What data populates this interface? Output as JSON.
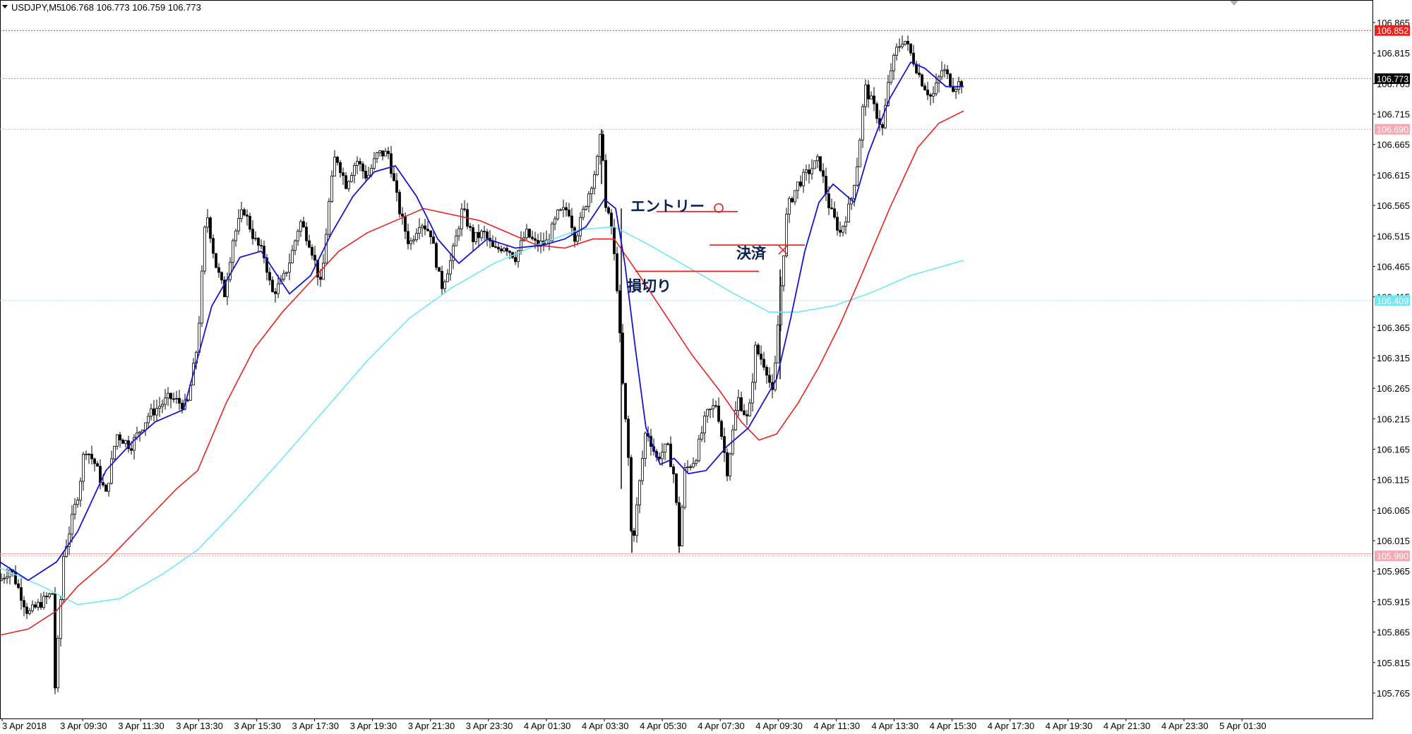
{
  "header": {
    "menu_icon": "triangle-down-icon",
    "symbol": "USDJPY,M5",
    "ohlc": "106.768 106.773 106.759 106.773"
  },
  "colors": {
    "ma_fast": "#1515d0",
    "ma_mid": "#e8231d",
    "ma_slow": "#6ee8f2",
    "candle": "#000000",
    "annotation_line": "#e8231d",
    "annotation_text": "#0a2050",
    "resistance_line": "#e8231d",
    "support_line": "#e8231d",
    "current_price_box": "#000000"
  },
  "annotations": {
    "entry_label": "エントリー",
    "exit_label": "決済",
    "stoploss_label": "損切り",
    "entry_marker_icon": "circle-icon",
    "exit_marker_icon": "cross-icon"
  },
  "chart_data": {
    "type": "candlestick",
    "symbol": "USDJPY",
    "timeframe": "M5",
    "y_ticks": [
      "106.865",
      "106.815",
      "106.765",
      "106.715",
      "106.665",
      "106.615",
      "106.565",
      "106.515",
      "106.465",
      "106.415",
      "106.365",
      "106.315",
      "106.265",
      "106.215",
      "106.165",
      "106.115",
      "106.065",
      "106.015",
      "105.965",
      "105.915",
      "105.865",
      "105.815",
      "105.765"
    ],
    "ylim": [
      105.745,
      106.89
    ],
    "x_ticks": [
      "3 Apr 2018",
      "3 Apr 09:30",
      "3 Apr 11:30",
      "3 Apr 13:30",
      "3 Apr 15:30",
      "3 Apr 17:30",
      "3 Apr 19:30",
      "3 Apr 21:30",
      "3 Apr 23:30",
      "4 Apr 01:30",
      "4 Apr 03:30",
      "4 Apr 05:30",
      "4 Apr 07:30",
      "4 Apr 09:30",
      "4 Apr 11:30",
      "4 Apr 13:30",
      "4 Apr 15:30",
      "4 Apr 17:30",
      "4 Apr 19:30",
      "4 Apr 21:30",
      "4 Apr 23:30",
      "5 Apr 01:30"
    ],
    "current_price": "106.773",
    "horizontal_levels": [
      {
        "label": "106.852",
        "value": 106.852,
        "color": "#e8231d",
        "label_bg": "#e8231d"
      },
      {
        "label": "106.690",
        "value": 106.69,
        "color": "#f4a0a0",
        "label_bg": "#f4a8b4"
      },
      {
        "label": "106.409",
        "value": 106.409,
        "color": "#6ee8f2",
        "label_bg": "#6ee8f2"
      },
      {
        "label": "105.990",
        "value": 105.99,
        "color": "#f4a0a0",
        "label_bg": "#f4a8b4"
      }
    ],
    "trade": {
      "entry": 106.555,
      "exit": 106.5,
      "stop_loss": 106.457
    },
    "price_path": [
      [
        0,
        105.95
      ],
      [
        15,
        105.97
      ],
      [
        40,
        105.895
      ],
      [
        75,
        105.93
      ],
      [
        78,
        105.775
      ],
      [
        90,
        105.99
      ],
      [
        100,
        106.04
      ],
      [
        112,
        106.1
      ],
      [
        120,
        106.17
      ],
      [
        135,
        106.14
      ],
      [
        150,
        106.09
      ],
      [
        165,
        106.19
      ],
      [
        185,
        106.17
      ],
      [
        210,
        106.22
      ],
      [
        240,
        106.25
      ],
      [
        265,
        106.235
      ],
      [
        280,
        106.34
      ],
      [
        292,
        106.56
      ],
      [
        305,
        106.47
      ],
      [
        318,
        106.42
      ],
      [
        330,
        106.51
      ],
      [
        345,
        106.56
      ],
      [
        360,
        106.51
      ],
      [
        375,
        106.48
      ],
      [
        385,
        106.42
      ],
      [
        400,
        106.44
      ],
      [
        412,
        106.48
      ],
      [
        425,
        106.54
      ],
      [
        440,
        106.5
      ],
      [
        455,
        106.43
      ],
      [
        465,
        106.56
      ],
      [
        475,
        106.65
      ],
      [
        490,
        106.6
      ],
      [
        505,
        106.64
      ],
      [
        520,
        106.61
      ],
      [
        535,
        106.65
      ],
      [
        550,
        106.65
      ],
      [
        565,
        106.56
      ],
      [
        580,
        106.5
      ],
      [
        595,
        106.54
      ],
      [
        610,
        106.52
      ],
      [
        625,
        106.43
      ],
      [
        640,
        106.48
      ],
      [
        655,
        106.56
      ],
      [
        670,
        106.51
      ],
      [
        685,
        106.52
      ],
      [
        700,
        106.49
      ],
      [
        715,
        106.5
      ],
      [
        730,
        106.48
      ],
      [
        745,
        106.52
      ],
      [
        760,
        106.5
      ],
      [
        775,
        106.505
      ],
      [
        790,
        106.55
      ],
      [
        805,
        106.56
      ],
      [
        815,
        106.51
      ],
      [
        830,
        106.57
      ],
      [
        845,
        106.63
      ],
      [
        852,
        106.69
      ],
      [
        858,
        106.56
      ],
      [
        866,
        106.53
      ],
      [
        875,
        106.42
      ],
      [
        880,
        106.3
      ],
      [
        890,
        106.15
      ],
      [
        895,
        106.0
      ],
      [
        905,
        106.1
      ],
      [
        915,
        106.2
      ],
      [
        930,
        106.15
      ],
      [
        945,
        106.17
      ],
      [
        955,
        106.12
      ],
      [
        962,
        106.01
      ],
      [
        970,
        106.13
      ],
      [
        985,
        106.15
      ],
      [
        1000,
        106.22
      ],
      [
        1015,
        106.24
      ],
      [
        1030,
        106.13
      ],
      [
        1045,
        106.25
      ],
      [
        1060,
        106.21
      ],
      [
        1070,
        106.33
      ],
      [
        1085,
        106.3
      ],
      [
        1095,
        106.25
      ],
      [
        1105,
        106.42
      ],
      [
        1115,
        106.56
      ],
      [
        1130,
        106.6
      ],
      [
        1145,
        106.62
      ],
      [
        1160,
        106.64
      ],
      [
        1175,
        106.56
      ],
      [
        1190,
        106.52
      ],
      [
        1205,
        106.57
      ],
      [
        1215,
        106.64
      ],
      [
        1225,
        106.76
      ],
      [
        1240,
        106.72
      ],
      [
        1250,
        106.69
      ],
      [
        1260,
        106.78
      ],
      [
        1270,
        106.82
      ],
      [
        1280,
        106.84
      ],
      [
        1295,
        106.8
      ],
      [
        1305,
        106.77
      ],
      [
        1320,
        106.74
      ],
      [
        1335,
        106.79
      ],
      [
        1350,
        106.76
      ],
      [
        1365,
        106.77
      ]
    ],
    "ma_fast_path": [
      [
        0,
        105.98
      ],
      [
        40,
        105.95
      ],
      [
        80,
        105.98
      ],
      [
        110,
        106.03
      ],
      [
        150,
        106.13
      ],
      [
        190,
        106.18
      ],
      [
        220,
        106.21
      ],
      [
        260,
        106.23
      ],
      [
        300,
        106.4
      ],
      [
        340,
        106.48
      ],
      [
        370,
        106.49
      ],
      [
        410,
        106.42
      ],
      [
        440,
        106.45
      ],
      [
        470,
        106.52
      ],
      [
        500,
        106.58
      ],
      [
        530,
        106.62
      ],
      [
        560,
        106.63
      ],
      [
        590,
        106.58
      ],
      [
        620,
        106.51
      ],
      [
        650,
        106.47
      ],
      [
        690,
        106.51
      ],
      [
        730,
        106.495
      ],
      [
        770,
        106.5
      ],
      [
        800,
        106.51
      ],
      [
        830,
        106.53
      ],
      [
        856,
        106.575
      ],
      [
        872,
        106.56
      ],
      [
        885,
        106.47
      ],
      [
        900,
        106.33
      ],
      [
        915,
        106.2
      ],
      [
        935,
        106.14
      ],
      [
        955,
        106.15
      ],
      [
        975,
        106.125
      ],
      [
        1000,
        106.13
      ],
      [
        1030,
        106.17
      ],
      [
        1060,
        106.2
      ],
      [
        1080,
        106.24
      ],
      [
        1100,
        106.28
      ],
      [
        1120,
        106.38
      ],
      [
        1140,
        106.49
      ],
      [
        1160,
        106.57
      ],
      [
        1180,
        106.6
      ],
      [
        1210,
        106.57
      ],
      [
        1230,
        106.65
      ],
      [
        1260,
        106.74
      ],
      [
        1290,
        106.8
      ],
      [
        1310,
        106.79
      ],
      [
        1340,
        106.76
      ],
      [
        1365,
        106.76
      ]
    ],
    "ma_mid_path": [
      [
        0,
        105.86
      ],
      [
        40,
        105.87
      ],
      [
        80,
        105.9
      ],
      [
        110,
        105.94
      ],
      [
        150,
        105.98
      ],
      [
        200,
        106.04
      ],
      [
        250,
        106.1
      ],
      [
        280,
        106.13
      ],
      [
        320,
        106.24
      ],
      [
        360,
        106.33
      ],
      [
        400,
        106.39
      ],
      [
        440,
        106.44
      ],
      [
        480,
        106.49
      ],
      [
        520,
        106.52
      ],
      [
        560,
        106.54
      ],
      [
        600,
        106.56
      ],
      [
        640,
        106.55
      ],
      [
        680,
        106.54
      ],
      [
        720,
        106.52
      ],
      [
        760,
        106.5
      ],
      [
        800,
        106.495
      ],
      [
        840,
        106.51
      ],
      [
        870,
        106.51
      ],
      [
        900,
        106.46
      ],
      [
        940,
        106.39
      ],
      [
        980,
        106.32
      ],
      [
        1020,
        106.26
      ],
      [
        1050,
        106.21
      ],
      [
        1075,
        106.18
      ],
      [
        1100,
        106.19
      ],
      [
        1130,
        106.24
      ],
      [
        1160,
        106.3
      ],
      [
        1190,
        106.37
      ],
      [
        1220,
        106.45
      ],
      [
        1260,
        106.56
      ],
      [
        1300,
        106.66
      ],
      [
        1330,
        106.7
      ],
      [
        1365,
        106.72
      ]
    ],
    "ma_slow_path": [
      [
        0,
        105.97
      ],
      [
        60,
        105.94
      ],
      [
        110,
        105.91
      ],
      [
        170,
        105.92
      ],
      [
        230,
        105.96
      ],
      [
        280,
        106.0
      ],
      [
        330,
        106.06
      ],
      [
        400,
        106.15
      ],
      [
        460,
        106.23
      ],
      [
        520,
        106.31
      ],
      [
        580,
        106.38
      ],
      [
        640,
        106.43
      ],
      [
        700,
        106.47
      ],
      [
        760,
        106.5
      ],
      [
        820,
        106.525
      ],
      [
        870,
        106.53
      ],
      [
        920,
        106.5
      ],
      [
        980,
        106.46
      ],
      [
        1040,
        106.42
      ],
      [
        1090,
        106.39
      ],
      [
        1130,
        106.39
      ],
      [
        1180,
        106.4
      ],
      [
        1230,
        106.42
      ],
      [
        1290,
        106.45
      ],
      [
        1365,
        106.475
      ]
    ]
  }
}
